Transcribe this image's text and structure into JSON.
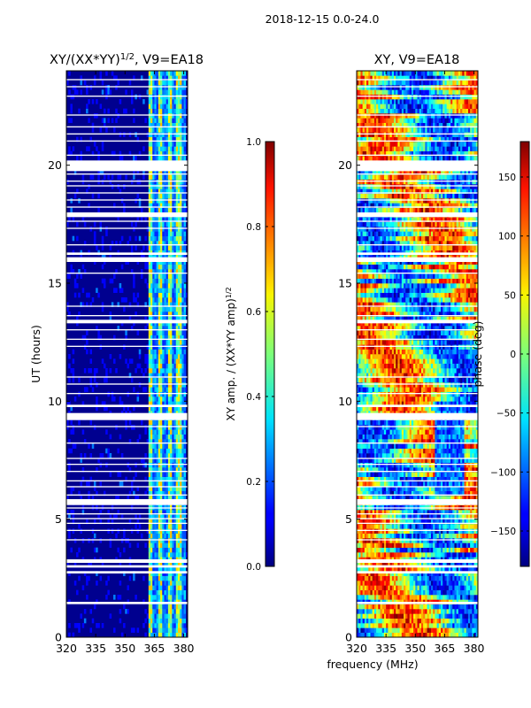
{
  "figure": {
    "suptitle": "2018-12-15 0.0-24.0",
    "xlabel": "frequency (MHz)"
  },
  "chart_data": [
    {
      "type": "heatmap",
      "title_prefix": "XY/(XX*YY)",
      "title_exponent": "1/2",
      "title_suffix": ", V9=EA18",
      "xlabel": "",
      "ylabel": "UT (hours)",
      "xlim": [
        320,
        382
      ],
      "ylim": [
        0,
        24
      ],
      "xticks": [
        320,
        335,
        350,
        365,
        380
      ],
      "yticks": [
        0,
        5,
        10,
        15,
        20
      ],
      "colorbar": {
        "label_prefix": "XY amp. / (XX*YY amp)",
        "label_exponent": "1/2",
        "range": [
          0.0,
          1.0
        ],
        "ticks": [
          "0.0",
          "0.2",
          "0.4",
          "0.6",
          "0.8",
          "1.0"
        ],
        "tick_values": [
          0.0,
          0.2,
          0.4,
          0.6,
          0.8,
          1.0
        ]
      },
      "colormap": "jet",
      "description_values": {
        "background_level": 0.05,
        "band_x_range": [
          362,
          381
        ],
        "band_level_range": [
          0.3,
          0.7
        ]
      }
    },
    {
      "type": "heatmap",
      "title": "XY, V9=EA18",
      "xlabel": "",
      "ylabel": "",
      "xlim": [
        320,
        382
      ],
      "ylim": [
        0,
        24
      ],
      "xticks": [
        320,
        335,
        350,
        365,
        380
      ],
      "yticks": [
        0,
        5,
        10,
        15,
        20
      ],
      "colorbar": {
        "label": "phase (deg)",
        "range": [
          -180,
          180
        ],
        "ticks": [
          "−150",
          "−100",
          "−50",
          "0",
          "50",
          "100",
          "150"
        ],
        "tick_values": [
          -150,
          -100,
          -50,
          0,
          50,
          100,
          150
        ]
      },
      "colormap": "jet",
      "description_values": {
        "phase_range": [
          -180,
          180
        ]
      }
    }
  ],
  "flagged_rows_hours": [
    [
      1.4,
      1.5
    ],
    [
      2.7,
      2.8
    ],
    [
      2.95,
      3.05
    ],
    [
      3.15,
      3.3
    ],
    [
      4.1,
      4.15
    ],
    [
      4.5,
      4.55
    ],
    [
      4.8,
      4.85
    ],
    [
      5.0,
      5.05
    ],
    [
      5.2,
      5.25
    ],
    [
      5.45,
      5.5
    ],
    [
      5.6,
      5.85
    ],
    [
      6.0,
      6.05
    ],
    [
      6.35,
      6.4
    ],
    [
      6.6,
      6.65
    ],
    [
      7.0,
      7.05
    ],
    [
      7.3,
      7.35
    ],
    [
      7.55,
      7.6
    ],
    [
      8.2,
      8.25
    ],
    [
      8.9,
      8.95
    ],
    [
      9.2,
      9.5
    ],
    [
      9.75,
      9.85
    ],
    [
      10.3,
      10.35
    ],
    [
      10.7,
      10.75
    ],
    [
      11.0,
      11.05
    ],
    [
      12.3,
      12.35
    ],
    [
      12.6,
      12.65
    ],
    [
      13.0,
      13.05
    ],
    [
      13.3,
      13.45
    ],
    [
      13.6,
      13.65
    ],
    [
      14.0,
      14.05
    ],
    [
      15.4,
      15.45
    ],
    [
      15.9,
      16.1
    ],
    [
      16.2,
      16.3
    ],
    [
      16.6,
      16.65
    ],
    [
      17.3,
      17.35
    ],
    [
      17.6,
      17.65
    ],
    [
      17.8,
      18.0
    ],
    [
      18.2,
      18.25
    ],
    [
      18.5,
      18.55
    ],
    [
      18.8,
      18.85
    ],
    [
      19.1,
      19.15
    ],
    [
      19.3,
      19.35
    ],
    [
      19.6,
      19.65
    ],
    [
      19.75,
      20.2
    ],
    [
      20.4,
      20.45
    ],
    [
      21.0,
      21.05
    ],
    [
      21.3,
      21.35
    ],
    [
      21.6,
      21.65
    ],
    [
      22.1,
      22.15
    ],
    [
      22.9,
      22.95
    ],
    [
      23.3,
      23.35
    ],
    [
      23.6,
      23.65
    ]
  ]
}
